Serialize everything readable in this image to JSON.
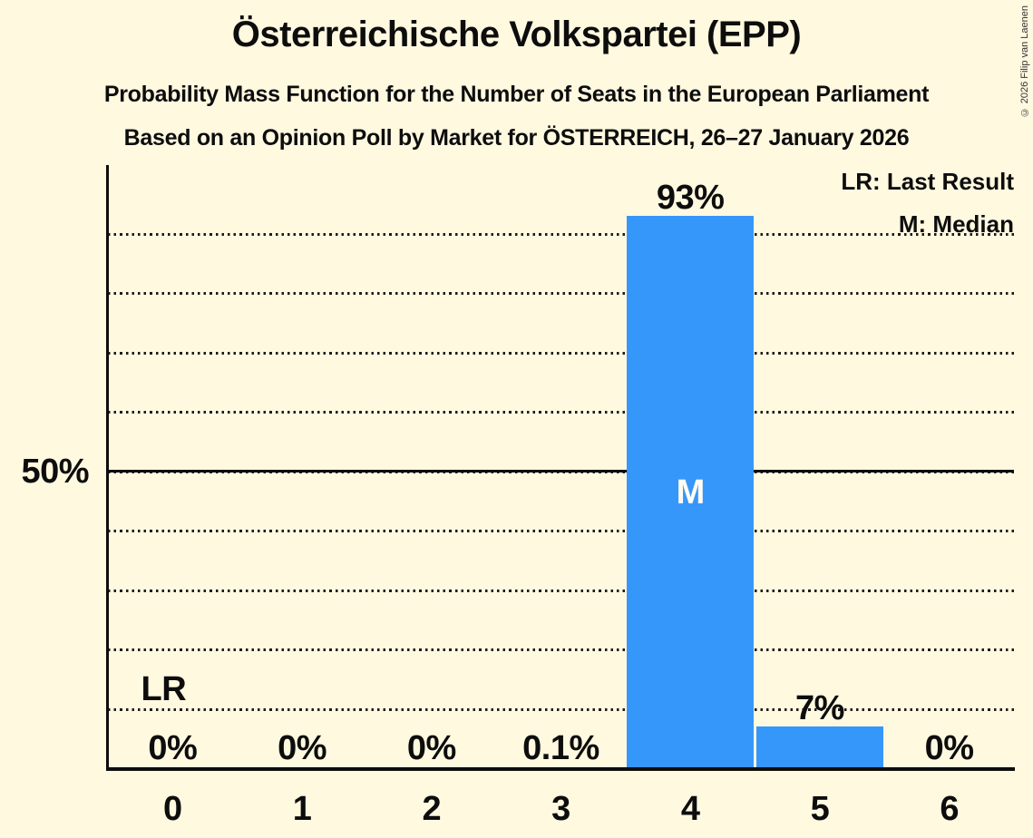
{
  "page": {
    "background": "#FFF9E0",
    "copyright": "© 2026 Filip van Laenen"
  },
  "header": {
    "title": "Österreichische Volkspartei (EPP)",
    "subtitle_line1": "Probability Mass Function for the Number of Seats in the European Parliament",
    "subtitle_line2": "Based on an Opinion Poll by Market for ÖSTERREICH, 26–27 January 2026"
  },
  "legend": {
    "last_result": "LR: Last Result",
    "median": "M: Median"
  },
  "chart_data": {
    "type": "bar",
    "title": "Probability Mass Function for the Number of Seats in the European Parliament",
    "xlabel": "",
    "ylabel": "",
    "categories": [
      "0",
      "1",
      "2",
      "3",
      "4",
      "5",
      "6"
    ],
    "values": [
      0,
      0,
      0,
      0.1,
      93,
      7,
      0
    ],
    "value_labels": [
      "0%",
      "0%",
      "0%",
      "0.1%",
      "93%",
      "7%",
      "0%"
    ],
    "bar_color": "#3697FA",
    "ylim": [
      0,
      100
    ],
    "grid": "horizontal dotted, every 10%",
    "y_gridlines_pct": [
      10,
      20,
      30,
      40,
      50,
      60,
      70,
      80,
      90
    ],
    "y_solid_line_pct": 50,
    "y_axis_label": {
      "pct": 50,
      "text": "50%"
    },
    "legend_position": "top-right",
    "median": {
      "category": "4",
      "marker": "M"
    },
    "last_result": {
      "category": "0",
      "marker": "LR"
    }
  }
}
